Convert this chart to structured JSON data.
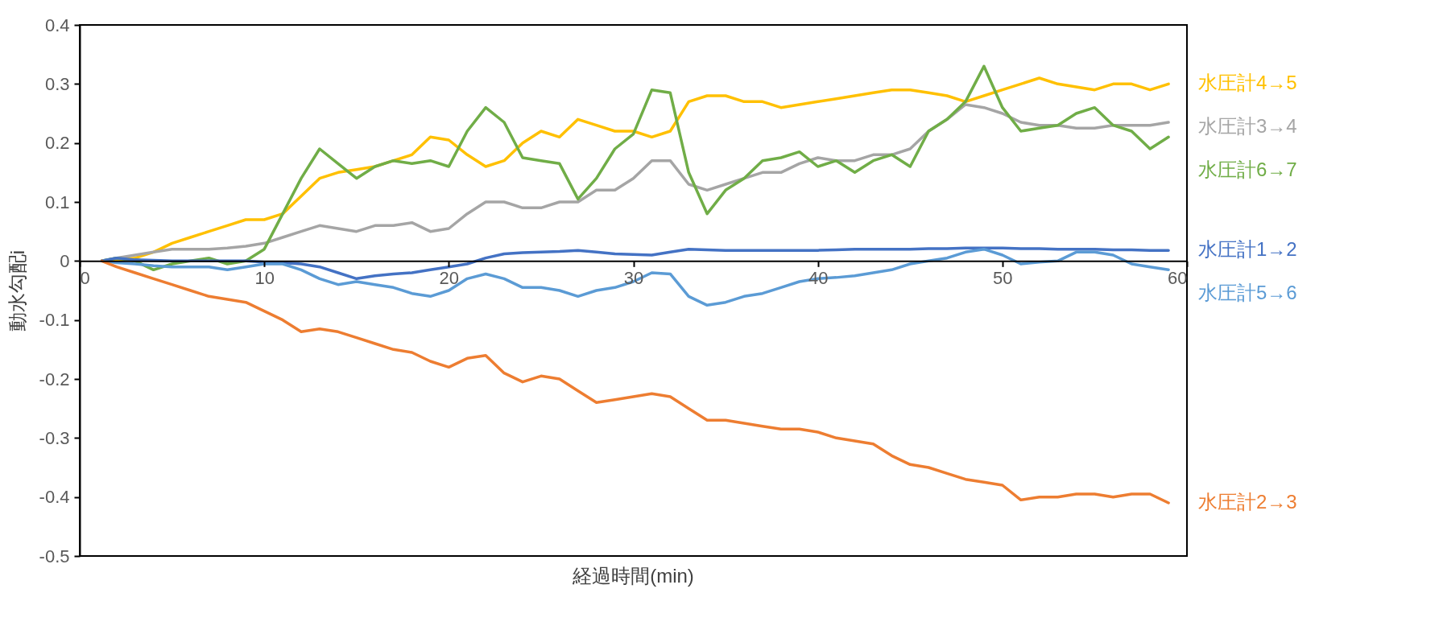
{
  "chart_data": {
    "type": "line",
    "xlabel": "経過時間(min)",
    "ylabel": "動水勾配i",
    "xlim": [
      0,
      60
    ],
    "xticks": [
      0,
      10,
      20,
      30,
      40,
      50,
      60
    ],
    "ylim": [
      -0.5,
      0.4
    ],
    "yticks": [
      -0.5,
      -0.4,
      -0.3,
      -0.2,
      -0.1,
      0,
      0.1,
      0.2,
      0.3,
      0.4
    ],
    "x": [
      1.2,
      2,
      3,
      4,
      5,
      6,
      7,
      8,
      9,
      10,
      11,
      12,
      13,
      14,
      15,
      16,
      17,
      18,
      19,
      20,
      21,
      22,
      23,
      24,
      25,
      26,
      27,
      28,
      29,
      30,
      31,
      32,
      33,
      34,
      35,
      36,
      37,
      38,
      39,
      40,
      41,
      42,
      43,
      44,
      45,
      46,
      47,
      48,
      49,
      50,
      51,
      52,
      53,
      54,
      55,
      56,
      57,
      58,
      59
    ],
    "series": [
      {
        "name": "水圧計4→5",
        "color": "#ffc000",
        "values": [
          0,
          0.002,
          0.005,
          0.015,
          0.03,
          0.04,
          0.05,
          0.06,
          0.07,
          0.07,
          0.08,
          0.11,
          0.14,
          0.15,
          0.155,
          0.16,
          0.17,
          0.18,
          0.21,
          0.205,
          0.18,
          0.16,
          0.17,
          0.2,
          0.22,
          0.21,
          0.24,
          0.23,
          0.22,
          0.22,
          0.21,
          0.22,
          0.27,
          0.28,
          0.28,
          0.27,
          0.27,
          0.26,
          0.265,
          0.27,
          0.275,
          0.28,
          0.285,
          0.29,
          0.29,
          0.285,
          0.28,
          0.27,
          0.28,
          0.29,
          0.3,
          0.31,
          0.3,
          0.295,
          0.29,
          0.3,
          0.3,
          0.29,
          0.3
        ]
      },
      {
        "name": "水圧計3→4",
        "color": "#a5a5a5",
        "values": [
          0,
          0.005,
          0.01,
          0.015,
          0.02,
          0.02,
          0.02,
          0.022,
          0.025,
          0.03,
          0.04,
          0.05,
          0.06,
          0.055,
          0.05,
          0.06,
          0.06,
          0.065,
          0.05,
          0.055,
          0.08,
          0.1,
          0.1,
          0.09,
          0.09,
          0.1,
          0.1,
          0.12,
          0.12,
          0.14,
          0.17,
          0.17,
          0.13,
          0.12,
          0.13,
          0.14,
          0.15,
          0.15,
          0.165,
          0.175,
          0.17,
          0.17,
          0.18,
          0.18,
          0.19,
          0.22,
          0.24,
          0.265,
          0.26,
          0.25,
          0.235,
          0.23,
          0.23,
          0.225,
          0.225,
          0.23,
          0.23,
          0.23,
          0.235
        ]
      },
      {
        "name": "水圧計6→7",
        "color": "#70ad47",
        "values": [
          0,
          0.005,
          0,
          -0.015,
          -0.005,
          0,
          0.005,
          -0.005,
          0,
          0.02,
          0.08,
          0.14,
          0.19,
          0.165,
          0.14,
          0.16,
          0.17,
          0.165,
          0.17,
          0.16,
          0.22,
          0.26,
          0.235,
          0.175,
          0.17,
          0.165,
          0.105,
          0.14,
          0.19,
          0.215,
          0.29,
          0.285,
          0.15,
          0.08,
          0.12,
          0.14,
          0.17,
          0.175,
          0.185,
          0.16,
          0.17,
          0.15,
          0.17,
          0.18,
          0.16,
          0.22,
          0.24,
          0.27,
          0.33,
          0.26,
          0.22,
          0.225,
          0.23,
          0.25,
          0.26,
          0.23,
          0.22,
          0.19,
          0.21
        ]
      },
      {
        "name": "水圧計1→2",
        "color": "#4472c4",
        "values": [
          0,
          0.005,
          0.002,
          0.001,
          0,
          0,
          0,
          0,
          0,
          -0.002,
          -0.003,
          -0.005,
          -0.01,
          -0.02,
          -0.03,
          -0.025,
          -0.022,
          -0.02,
          -0.015,
          -0.01,
          -0.005,
          0.005,
          0.012,
          0.014,
          0.015,
          0.016,
          0.018,
          0.015,
          0.012,
          0.011,
          0.01,
          0.015,
          0.02,
          0.019,
          0.018,
          0.018,
          0.018,
          0.018,
          0.018,
          0.018,
          0.019,
          0.02,
          0.02,
          0.02,
          0.02,
          0.021,
          0.021,
          0.022,
          0.022,
          0.022,
          0.021,
          0.021,
          0.02,
          0.02,
          0.02,
          0.019,
          0.019,
          0.018,
          0.018
        ]
      },
      {
        "name": "水圧計5→6",
        "color": "#5b9bd5",
        "values": [
          0,
          -0.003,
          -0.005,
          -0.008,
          -0.01,
          -0.01,
          -0.01,
          -0.015,
          -0.01,
          -0.005,
          -0.005,
          -0.015,
          -0.03,
          -0.04,
          -0.035,
          -0.04,
          -0.045,
          -0.055,
          -0.06,
          -0.05,
          -0.03,
          -0.022,
          -0.03,
          -0.045,
          -0.045,
          -0.05,
          -0.06,
          -0.05,
          -0.045,
          -0.035,
          -0.02,
          -0.022,
          -0.06,
          -0.075,
          -0.07,
          -0.06,
          -0.055,
          -0.045,
          -0.035,
          -0.03,
          -0.028,
          -0.025,
          -0.02,
          -0.015,
          -0.005,
          0,
          0.005,
          0.015,
          0.02,
          0.01,
          -0.005,
          -0.002,
          0,
          0.015,
          0.015,
          0.01,
          -0.005,
          -0.01,
          -0.015
        ]
      },
      {
        "name": "水圧計2→3",
        "color": "#ed7d31",
        "values": [
          0,
          -0.01,
          -0.02,
          -0.03,
          -0.04,
          -0.05,
          -0.06,
          -0.065,
          -0.07,
          -0.085,
          -0.1,
          -0.12,
          -0.115,
          -0.12,
          -0.13,
          -0.14,
          -0.15,
          -0.155,
          -0.17,
          -0.18,
          -0.165,
          -0.16,
          -0.19,
          -0.205,
          -0.195,
          -0.2,
          -0.22,
          -0.24,
          -0.235,
          -0.23,
          -0.225,
          -0.23,
          -0.25,
          -0.27,
          -0.27,
          -0.275,
          -0.28,
          -0.285,
          -0.285,
          -0.29,
          -0.3,
          -0.305,
          -0.31,
          -0.33,
          -0.345,
          -0.35,
          -0.36,
          -0.37,
          -0.375,
          -0.38,
          -0.405,
          -0.4,
          -0.4,
          -0.395,
          -0.395,
          -0.4,
          -0.395,
          -0.395,
          -0.41
        ]
      }
    ]
  }
}
